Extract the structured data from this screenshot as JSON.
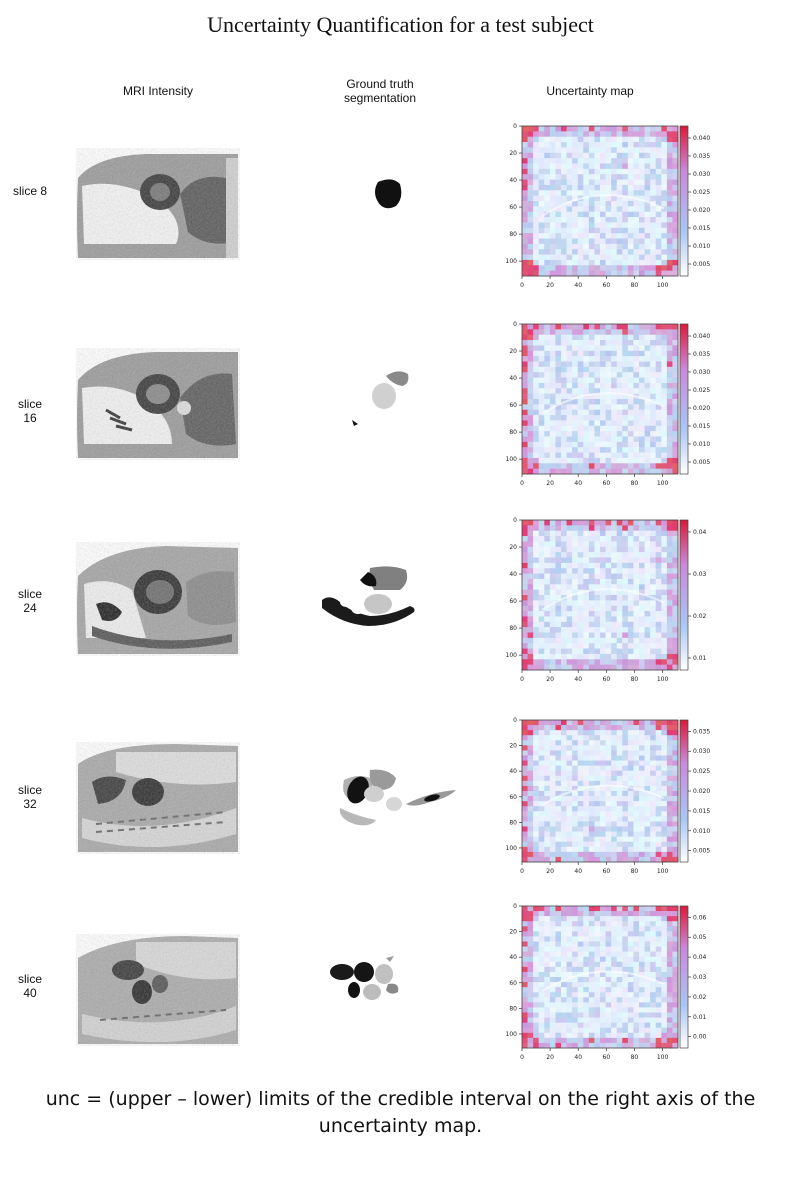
{
  "title": "Uncertainty Quantification for a test subject",
  "columns": {
    "mri": "MRI Intensity",
    "gt_line1": "Ground truth",
    "gt_line2": "segmentation",
    "unc": "Uncertainty map"
  },
  "rows": [
    {
      "label_l1": "slice 8",
      "label_l2": "",
      "cbar_ticks": [
        "0.040",
        "0.035",
        "0.030",
        "0.025",
        "0.020",
        "0.015",
        "0.010",
        "0.005"
      ]
    },
    {
      "label_l1": "slice",
      "label_l2": "16",
      "cbar_ticks": [
        "0.040",
        "0.035",
        "0.030",
        "0.025",
        "0.020",
        "0.015",
        "0.010",
        "0.005"
      ]
    },
    {
      "label_l1": "slice",
      "label_l2": "24",
      "cbar_ticks": [
        "0.04",
        "0.03",
        "0.02",
        "0.01"
      ]
    },
    {
      "label_l1": "slice",
      "label_l2": "32",
      "cbar_ticks": [
        "0.035",
        "0.030",
        "0.025",
        "0.020",
        "0.015",
        "0.010",
        "0.005"
      ]
    },
    {
      "label_l1": "slice",
      "label_l2": "40",
      "cbar_ticks": [
        "0.06",
        "0.05",
        "0.04",
        "0.03",
        "0.02",
        "0.01",
        "0.00"
      ]
    }
  ],
  "axis": {
    "x_ticks": [
      "0",
      "20",
      "40",
      "60",
      "80",
      "100"
    ],
    "y_ticks": [
      "0",
      "20",
      "40",
      "60",
      "80",
      "100"
    ]
  },
  "colors": {
    "low": "#ffffff",
    "mid": "#a9c4f0",
    "high": "#d91f3c"
  },
  "caption": "unc = (upper – lower) limits of the credible interval on the right axis of the uncertainty map."
}
